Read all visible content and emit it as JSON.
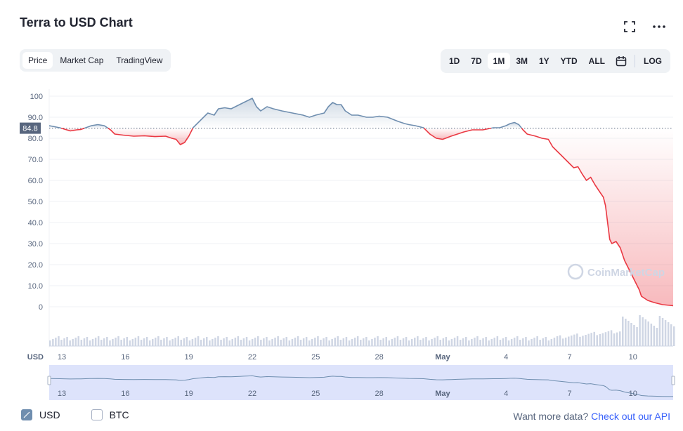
{
  "title": "Terra to USD Chart",
  "tabs": [
    {
      "label": "Price",
      "active": true
    },
    {
      "label": "Market Cap",
      "active": false
    },
    {
      "label": "TradingView",
      "active": false
    }
  ],
  "ranges": [
    {
      "label": "1D",
      "active": false
    },
    {
      "label": "7D",
      "active": false
    },
    {
      "label": "1M",
      "active": true
    },
    {
      "label": "3M",
      "active": false
    },
    {
      "label": "1Y",
      "active": false
    },
    {
      "label": "YTD",
      "active": false
    },
    {
      "label": "ALL",
      "active": false
    }
  ],
  "log_label": "LOG",
  "icons": {
    "fullscreen": "fullscreen-icon",
    "more": "more-icon",
    "calendar": "calendar-icon"
  },
  "watermark": "CoinMarketCap",
  "currency_label": "USD",
  "bottom": {
    "usd_label": "USD",
    "btc_label": "BTC",
    "api_text": "Want more data?",
    "api_link": "Check out our API"
  },
  "colors": {
    "up": "#6f8eaf",
    "down": "#ea3943",
    "accent": "#3861fb",
    "refline": "#58667e"
  },
  "chart_data": {
    "type": "line",
    "ylim": [
      0,
      100
    ],
    "yticks": [
      "100",
      "90.0",
      "80.0",
      "70.0",
      "60.0",
      "50.0",
      "40.0",
      "30.0",
      "20.0",
      "10.0",
      "0"
    ],
    "xticks": [
      "13",
      "16",
      "19",
      "22",
      "25",
      "28",
      "May",
      "4",
      "7",
      "10"
    ],
    "reference_value": "84.8",
    "price": [
      [
        0,
        86
      ],
      [
        0.5,
        85
      ],
      [
        1,
        83.5
      ],
      [
        1.3,
        84
      ],
      [
        1.5,
        84.2
      ],
      [
        2,
        86
      ],
      [
        2.3,
        86.5
      ],
      [
        2.6,
        86
      ],
      [
        2.9,
        84
      ],
      [
        3.1,
        82
      ],
      [
        3.5,
        81.5
      ],
      [
        4,
        81
      ],
      [
        4.5,
        81.2
      ],
      [
        5,
        80.8
      ],
      [
        5.5,
        81
      ],
      [
        5.8,
        80
      ],
      [
        6,
        79.5
      ],
      [
        6.2,
        77
      ],
      [
        6.4,
        78
      ],
      [
        6.6,
        81
      ],
      [
        6.8,
        85
      ],
      [
        7.2,
        89
      ],
      [
        7.5,
        92
      ],
      [
        7.8,
        91
      ],
      [
        8,
        94
      ],
      [
        8.3,
        94.5
      ],
      [
        8.6,
        94
      ],
      [
        9,
        96
      ],
      [
        9.2,
        97
      ],
      [
        9.4,
        98
      ],
      [
        9.6,
        99
      ],
      [
        9.8,
        95
      ],
      [
        10,
        93
      ],
      [
        10.3,
        95
      ],
      [
        10.6,
        94
      ],
      [
        11,
        93
      ],
      [
        11.5,
        92
      ],
      [
        12,
        91
      ],
      [
        12.3,
        90
      ],
      [
        12.6,
        91
      ],
      [
        13,
        92
      ],
      [
        13.2,
        95
      ],
      [
        13.4,
        97
      ],
      [
        13.6,
        96
      ],
      [
        13.8,
        96
      ],
      [
        14,
        93
      ],
      [
        14.3,
        91
      ],
      [
        14.6,
        91
      ],
      [
        15,
        90
      ],
      [
        15.3,
        90
      ],
      [
        15.6,
        90.5
      ],
      [
        16,
        90
      ],
      [
        16.5,
        88
      ],
      [
        16.8,
        87
      ],
      [
        17,
        86.5
      ],
      [
        17.3,
        86
      ],
      [
        17.7,
        85
      ],
      [
        18,
        82
      ],
      [
        18.3,
        80
      ],
      [
        18.6,
        79.5
      ],
      [
        19,
        81
      ],
      [
        19.3,
        82
      ],
      [
        19.6,
        83
      ],
      [
        20,
        84
      ],
      [
        20.5,
        84
      ],
      [
        21,
        85
      ],
      [
        21.3,
        85
      ],
      [
        21.6,
        86
      ],
      [
        21.8,
        87
      ],
      [
        22,
        87.5
      ],
      [
        22.2,
        86.5
      ],
      [
        22.4,
        84
      ],
      [
        22.6,
        82
      ],
      [
        22.8,
        81.5
      ],
      [
        23,
        81
      ],
      [
        23.3,
        80
      ],
      [
        23.6,
        79.5
      ],
      [
        23.8,
        76
      ],
      [
        24,
        74
      ],
      [
        24.2,
        72
      ],
      [
        24.4,
        70
      ],
      [
        24.6,
        68
      ],
      [
        24.8,
        66
      ],
      [
        25,
        66.5
      ],
      [
        25.2,
        63
      ],
      [
        25.4,
        60
      ],
      [
        25.6,
        61.5
      ],
      [
        25.8,
        58
      ],
      [
        26,
        55
      ],
      [
        26.2,
        52
      ],
      [
        26.3,
        48
      ],
      [
        26.4,
        40
      ],
      [
        26.5,
        32
      ],
      [
        26.6,
        30
      ],
      [
        26.8,
        31
      ],
      [
        27,
        28
      ],
      [
        27.2,
        22
      ],
      [
        27.4,
        18
      ],
      [
        27.6,
        14
      ],
      [
        27.8,
        10
      ],
      [
        27.9,
        8
      ],
      [
        28,
        5
      ],
      [
        28.3,
        3
      ],
      [
        28.6,
        2
      ],
      [
        29,
        1
      ],
      [
        29.5,
        0.5
      ]
    ]
  }
}
